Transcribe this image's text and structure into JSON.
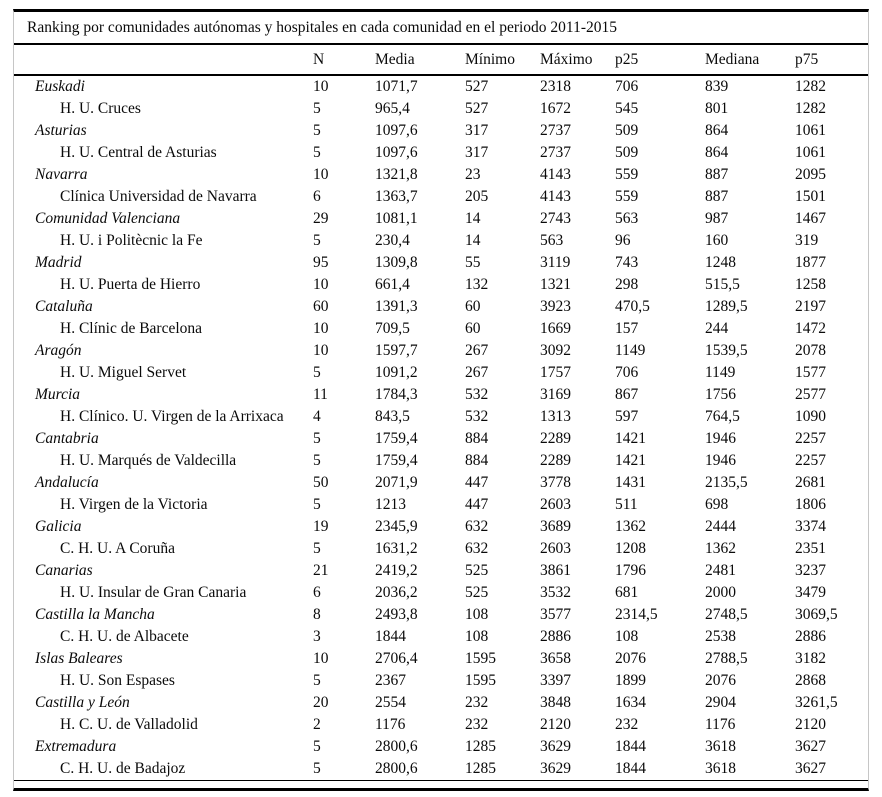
{
  "table": {
    "title": "Ranking por comunidades autónomas y hospitales en cada comunidad en el periodo 2011-2015",
    "columns": [
      "N",
      "Media",
      "Mínimo",
      "Máximo",
      "p25",
      "Mediana",
      "p75"
    ],
    "rows": [
      {
        "name": "Euskadi",
        "type": "community",
        "values": [
          "10",
          "1071,7",
          "527",
          "2318",
          "706",
          "839",
          "1282"
        ]
      },
      {
        "name": "H. U. Cruces",
        "type": "hospital",
        "values": [
          "5",
          "965,4",
          "527",
          "1672",
          "545",
          "801",
          "1282"
        ]
      },
      {
        "name": "Asturias",
        "type": "community",
        "values": [
          "5",
          "1097,6",
          "317",
          "2737",
          "509",
          "864",
          "1061"
        ]
      },
      {
        "name": "H. U. Central de Asturias",
        "type": "hospital",
        "values": [
          "5",
          "1097,6",
          "317",
          "2737",
          "509",
          "864",
          "1061"
        ]
      },
      {
        "name": "Navarra",
        "type": "community",
        "values": [
          "10",
          "1321,8",
          "23",
          "4143",
          "559",
          "887",
          "2095"
        ]
      },
      {
        "name": "Clínica Universidad de Navarra",
        "type": "hospital",
        "values": [
          "6",
          "1363,7",
          "205",
          "4143",
          "559",
          "887",
          "1501"
        ]
      },
      {
        "name": "Comunidad Valenciana",
        "type": "community",
        "values": [
          "29",
          "1081,1",
          "14",
          "2743",
          "563",
          "987",
          "1467"
        ]
      },
      {
        "name": "H. U. i Politècnic la Fe",
        "type": "hospital",
        "values": [
          "5",
          "230,4",
          "14",
          "563",
          "96",
          "160",
          "319"
        ]
      },
      {
        "name": "Madrid",
        "type": "community",
        "values": [
          "95",
          "1309,8",
          "55",
          "3119",
          "743",
          "1248",
          "1877"
        ]
      },
      {
        "name": "H. U. Puerta de Hierro",
        "type": "hospital",
        "values": [
          "10",
          "661,4",
          "132",
          "1321",
          "298",
          "515,5",
          "1258"
        ]
      },
      {
        "name": "Cataluña",
        "type": "community",
        "values": [
          "60",
          "1391,3",
          "60",
          "3923",
          "470,5",
          "1289,5",
          "2197"
        ]
      },
      {
        "name": "H. Clínic de Barcelona",
        "type": "hospital",
        "values": [
          "10",
          "709,5",
          "60",
          "1669",
          "157",
          "244",
          "1472"
        ]
      },
      {
        "name": "Aragón",
        "type": "community",
        "values": [
          "10",
          "1597,7",
          "267",
          "3092",
          "1149",
          "1539,5",
          "2078"
        ]
      },
      {
        "name": "H. U. Miguel Servet",
        "type": "hospital",
        "values": [
          "5",
          "1091,2",
          "267",
          "1757",
          "706",
          "1149",
          "1577"
        ]
      },
      {
        "name": "Murcia",
        "type": "community",
        "values": [
          "11",
          "1784,3",
          "532",
          "3169",
          "867",
          "1756",
          "2577"
        ]
      },
      {
        "name": "H. Clínico. U. Virgen de la Arrixaca",
        "type": "hospital",
        "values": [
          "4",
          "843,5",
          "532",
          "1313",
          "597",
          "764,5",
          "1090"
        ]
      },
      {
        "name": "Cantabria",
        "type": "community",
        "values": [
          "5",
          "1759,4",
          "884",
          "2289",
          "1421",
          "1946",
          "2257"
        ]
      },
      {
        "name": "H. U. Marqués de Valdecilla",
        "type": "hospital",
        "values": [
          "5",
          "1759,4",
          "884",
          "2289",
          "1421",
          "1946",
          "2257"
        ]
      },
      {
        "name": "Andalucía",
        "type": "community",
        "values": [
          "50",
          "2071,9",
          "447",
          "3778",
          "1431",
          "2135,5",
          "2681"
        ]
      },
      {
        "name": "H. Virgen de la Victoria",
        "type": "hospital",
        "values": [
          "5",
          "1213",
          "447",
          "2603",
          "511",
          "698",
          "1806"
        ]
      },
      {
        "name": "Galicia",
        "type": "community",
        "values": [
          "19",
          "2345,9",
          "632",
          "3689",
          "1362",
          "2444",
          "3374"
        ]
      },
      {
        "name": "C. H. U. A Coruña",
        "type": "hospital",
        "values": [
          "5",
          "1631,2",
          "632",
          "2603",
          "1208",
          "1362",
          "2351"
        ]
      },
      {
        "name": "Canarias",
        "type": "community",
        "values": [
          "21",
          "2419,2",
          "525",
          "3861",
          "1796",
          "2481",
          "3237"
        ]
      },
      {
        "name": "H. U. Insular de Gran Canaria",
        "type": "hospital",
        "values": [
          "6",
          "2036,2",
          "525",
          "3532",
          "681",
          "2000",
          "3479"
        ]
      },
      {
        "name": "Castilla la Mancha",
        "type": "community",
        "values": [
          "8",
          "2493,8",
          "108",
          "3577",
          "2314,5",
          "2748,5",
          "3069,5"
        ]
      },
      {
        "name": "C. H. U. de Albacete",
        "type": "hospital",
        "values": [
          "3",
          "1844",
          "108",
          "2886",
          "108",
          "2538",
          "2886"
        ]
      },
      {
        "name": "Islas Baleares",
        "type": "community",
        "values": [
          "10",
          "2706,4",
          "1595",
          "3658",
          "2076",
          "2788,5",
          "3182"
        ]
      },
      {
        "name": "H. U. Son Espases",
        "type": "hospital",
        "values": [
          "5",
          "2367",
          "1595",
          "3397",
          "1899",
          "2076",
          "2868"
        ]
      },
      {
        "name": "Castilla y León",
        "type": "community",
        "values": [
          "20",
          "2554",
          "232",
          "3848",
          "1634",
          "2904",
          "3261,5"
        ]
      },
      {
        "name": "H. C. U. de Valladolid",
        "type": "hospital",
        "values": [
          "2",
          "1176",
          "232",
          "2120",
          "232",
          "1176",
          "2120"
        ]
      },
      {
        "name": "Extremadura",
        "type": "community",
        "values": [
          "5",
          "2800,6",
          "1285",
          "3629",
          "1844",
          "3618",
          "3627"
        ]
      },
      {
        "name": "C. H. U. de Badajoz",
        "type": "hospital",
        "values": [
          "5",
          "2800,6",
          "1285",
          "3629",
          "1844",
          "3618",
          "3627"
        ]
      }
    ]
  },
  "colors": {
    "text": "#0a0a0a",
    "rule": "#000000",
    "side_border": "#c6c6c6",
    "background": "#ffffff"
  }
}
